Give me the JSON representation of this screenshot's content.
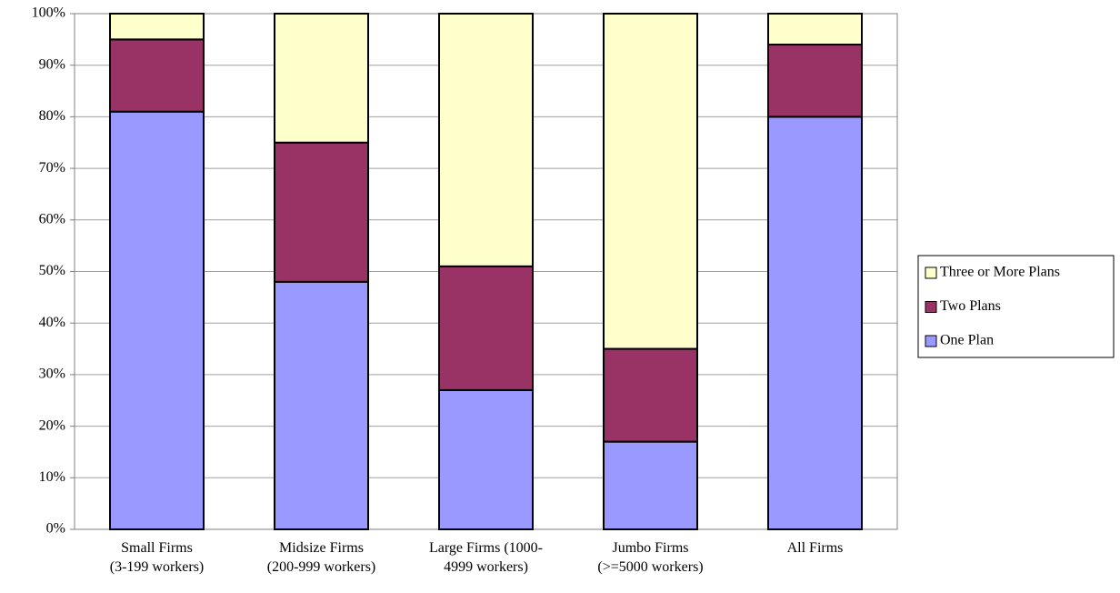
{
  "chart_data": {
    "type": "stacked_bar",
    "categories": [
      "Small Firms\n(3-199 workers)",
      "Midsize Firms\n(200-999 workers)",
      "Large Firms    (1000-\n4999 workers)",
      "Jumbo Firms\n(>=5000 workers)",
      "All Firms"
    ],
    "series": [
      {
        "name": "One Plan",
        "color": "#9999ff",
        "values": [
          81,
          48,
          27,
          17,
          80
        ]
      },
      {
        "name": "Two Plans",
        "color": "#993366",
        "values": [
          14,
          27,
          24,
          18,
          14
        ]
      },
      {
        "name": "Three or More Plans",
        "color": "#ffffcc",
        "values": [
          5,
          25,
          49,
          65,
          6
        ]
      }
    ],
    "ylim": [
      0,
      100
    ],
    "yticks": [
      {
        "value": 0,
        "label": "0%"
      },
      {
        "value": 10,
        "label": "10%"
      },
      {
        "value": 20,
        "label": "20%"
      },
      {
        "value": 30,
        "label": "30%"
      },
      {
        "value": 40,
        "label": "40%"
      },
      {
        "value": 50,
        "label": "50%"
      },
      {
        "value": 60,
        "label": "60%"
      },
      {
        "value": 70,
        "label": "70%"
      },
      {
        "value": 80,
        "label": "80%"
      },
      {
        "value": 90,
        "label": "90%"
      },
      {
        "value": 100,
        "label": "100%"
      }
    ],
    "grid": true,
    "legend": "right"
  }
}
